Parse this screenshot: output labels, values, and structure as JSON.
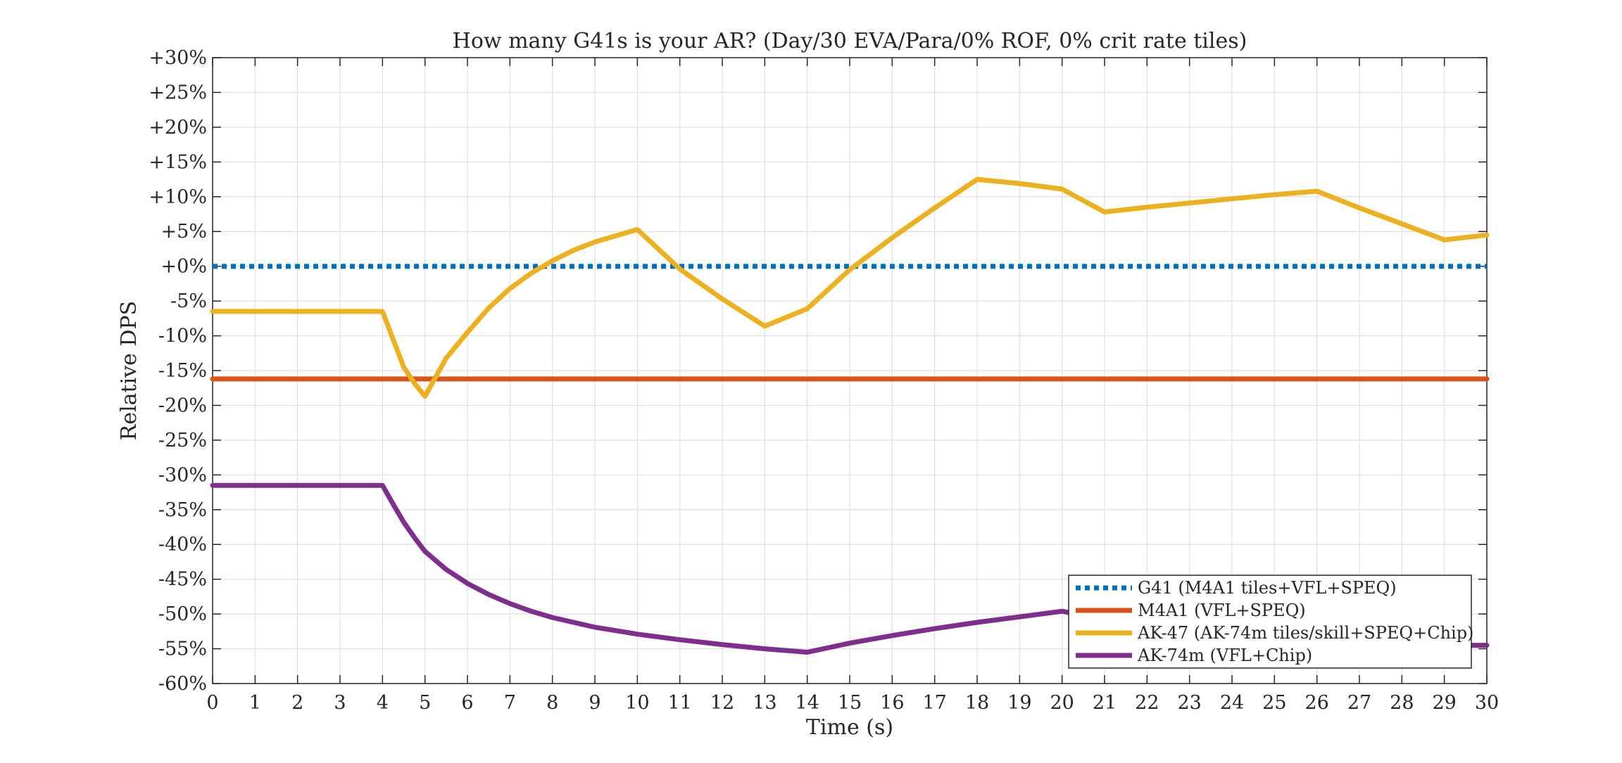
{
  "chart_data": {
    "type": "line",
    "title": "How many G41s is your AR? (Day/30 EVA/Para/0% ROF, 0% crit rate tiles)",
    "xlabel": "Time (s)",
    "ylabel": "Relative DPS",
    "xlim": [
      0,
      30
    ],
    "ylim": [
      -60,
      30
    ],
    "x_ticks": [
      0,
      1,
      2,
      3,
      4,
      5,
      6,
      7,
      8,
      9,
      10,
      11,
      12,
      13,
      14,
      15,
      16,
      17,
      18,
      19,
      20,
      21,
      22,
      23,
      24,
      25,
      26,
      27,
      28,
      29,
      30
    ],
    "y_ticks": [
      {
        "value": 30,
        "label": "+30%"
      },
      {
        "value": 25,
        "label": "+25%"
      },
      {
        "value": 20,
        "label": "+20%"
      },
      {
        "value": 15,
        "label": "+15%"
      },
      {
        "value": 10,
        "label": "+10%"
      },
      {
        "value": 5,
        "label": "+5%"
      },
      {
        "value": 0,
        "label": "+0%"
      },
      {
        "value": -5,
        "label": "-5%"
      },
      {
        "value": -10,
        "label": "-10%"
      },
      {
        "value": -15,
        "label": "-15%"
      },
      {
        "value": -20,
        "label": "-20%"
      },
      {
        "value": -25,
        "label": "-25%"
      },
      {
        "value": -30,
        "label": "-30%"
      },
      {
        "value": -35,
        "label": "-35%"
      },
      {
        "value": -40,
        "label": "-40%"
      },
      {
        "value": -45,
        "label": "-45%"
      },
      {
        "value": -50,
        "label": "-50%"
      },
      {
        "value": -55,
        "label": "-55%"
      },
      {
        "value": -60,
        "label": "-60%"
      }
    ],
    "grid": true,
    "legend_position": "bottom-right",
    "series": [
      {
        "name": "G41 (M4A1 tiles+VFL+SPEQ)",
        "color": "#0072BD",
        "line_style": "dotted",
        "x": [
          0,
          30
        ],
        "y": [
          0,
          0
        ]
      },
      {
        "name": "M4A1 (VFL+SPEQ)",
        "color": "#D95319",
        "line_style": "solid",
        "x": [
          0,
          30
        ],
        "y": [
          -16.2,
          -16.2
        ]
      },
      {
        "name": "AK-47 (AK-74m tiles/skill+SPEQ+Chip)",
        "color": "#EDB120",
        "line_style": "solid",
        "x": [
          0,
          1,
          2,
          3,
          4,
          4.25,
          4.5,
          4.75,
          5,
          5.5,
          6,
          6.5,
          7,
          7.5,
          8,
          8.5,
          9,
          9.5,
          10,
          11,
          12,
          13,
          14,
          15,
          16,
          17,
          18,
          19,
          20,
          21,
          22,
          23,
          24,
          25,
          26,
          27,
          28,
          29,
          30
        ],
        "y": [
          -6.5,
          -6.5,
          -6.5,
          -6.5,
          -6.5,
          -10.5,
          -14.5,
          -16.8,
          -18.7,
          -13.2,
          -9.5,
          -6.0,
          -3.2,
          -1.0,
          0.8,
          2.3,
          3.5,
          4.4,
          5.3,
          -0.4,
          -4.7,
          -8.6,
          -6.1,
          -0.5,
          4.1,
          8.4,
          12.5,
          11.9,
          11.1,
          7.8,
          8.5,
          9.1,
          9.7,
          10.3,
          10.8,
          8.4,
          6.1,
          3.8,
          4.5
        ]
      },
      {
        "name": "AK-74m (VFL+Chip)",
        "color": "#7E2F8E",
        "line_style": "solid",
        "x": [
          0,
          1,
          2,
          3,
          4,
          4.25,
          4.5,
          4.75,
          5,
          5.5,
          6,
          6.5,
          7,
          7.5,
          8,
          8.5,
          9,
          9.5,
          10,
          11,
          12,
          13,
          14,
          15,
          16,
          17,
          18,
          19,
          20,
          21,
          22,
          23,
          24,
          25,
          26,
          27,
          28,
          29,
          30
        ],
        "y": [
          -31.5,
          -31.5,
          -31.5,
          -31.5,
          -31.5,
          -34.2,
          -36.8,
          -39.0,
          -41.0,
          -43.6,
          -45.6,
          -47.2,
          -48.5,
          -49.6,
          -50.5,
          -51.2,
          -51.9,
          -52.4,
          -52.9,
          -53.7,
          -54.4,
          -55.0,
          -55.5,
          -54.2,
          -53.1,
          -52.1,
          -51.2,
          -50.4,
          -49.6,
          -50.8,
          -51.6,
          -52.2,
          -52.8,
          -53.2,
          -53.6,
          -53.9,
          -54.2,
          -54.5,
          -54.5
        ]
      }
    ]
  }
}
